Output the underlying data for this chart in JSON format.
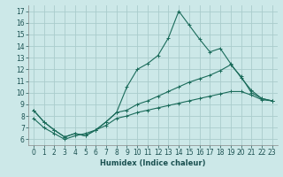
{
  "xlabel": "Humidex (Indice chaleur)",
  "xlim": [
    -0.5,
    23.5
  ],
  "ylim": [
    5.5,
    17.5
  ],
  "xticks": [
    0,
    1,
    2,
    3,
    4,
    5,
    6,
    7,
    8,
    9,
    10,
    11,
    12,
    13,
    14,
    15,
    16,
    17,
    18,
    19,
    20,
    21,
    22,
    23
  ],
  "yticks": [
    6,
    7,
    8,
    9,
    10,
    11,
    12,
    13,
    14,
    15,
    16,
    17
  ],
  "background_color": "#cce8e8",
  "grid_color": "#aacccc",
  "line_color": "#1a6b5a",
  "series1_x": [
    0,
    1,
    2,
    3,
    4,
    5,
    6,
    7,
    8,
    9,
    10,
    11,
    12,
    13,
    14,
    15,
    16,
    17,
    18,
    19,
    20,
    21,
    22,
    23
  ],
  "series1_y": [
    8.5,
    7.5,
    6.8,
    6.2,
    6.5,
    6.3,
    6.8,
    7.5,
    8.3,
    10.5,
    12.0,
    12.5,
    13.2,
    14.7,
    17.0,
    15.8,
    14.6,
    13.5,
    13.8,
    12.5,
    11.3,
    10.2,
    9.5,
    9.3
  ],
  "series2_x": [
    0,
    1,
    2,
    3,
    4,
    5,
    6,
    7,
    8,
    9,
    10,
    11,
    12,
    13,
    14,
    15,
    16,
    17,
    18,
    19,
    20,
    21,
    22,
    23
  ],
  "series2_y": [
    8.5,
    7.5,
    6.8,
    6.2,
    6.5,
    6.3,
    6.8,
    7.5,
    8.3,
    8.5,
    9.0,
    9.3,
    9.7,
    10.1,
    10.5,
    10.9,
    11.2,
    11.5,
    11.9,
    12.4,
    11.4,
    10.0,
    9.5,
    9.3
  ],
  "series3_x": [
    0,
    1,
    2,
    3,
    4,
    5,
    6,
    7,
    8,
    9,
    10,
    11,
    12,
    13,
    14,
    15,
    16,
    17,
    18,
    19,
    20,
    21,
    22,
    23
  ],
  "series3_y": [
    7.8,
    7.0,
    6.5,
    6.0,
    6.3,
    6.5,
    6.8,
    7.2,
    7.8,
    8.0,
    8.3,
    8.5,
    8.7,
    8.9,
    9.1,
    9.3,
    9.5,
    9.7,
    9.9,
    10.1,
    10.1,
    9.8,
    9.4,
    9.3
  ]
}
